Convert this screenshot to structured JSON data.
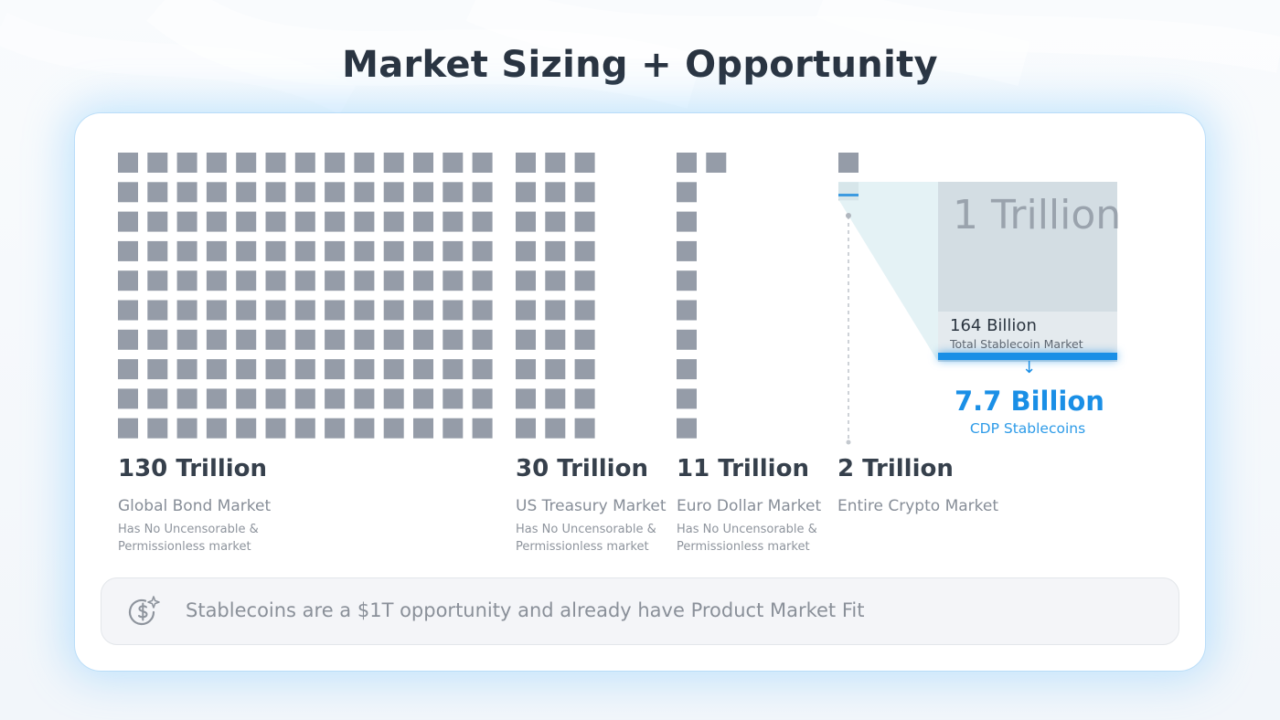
{
  "page": {
    "title": "Market Sizing + Opportunity"
  },
  "colors": {
    "cell": "#959ca8",
    "accent": "#1a8fe6",
    "glow": "#6ec3ff",
    "zoom_fill": "#d3dde3",
    "zoom_band": "#e4eaee",
    "title": "#2a3441"
  },
  "markets": [
    {
      "value": "130 Trillion",
      "name": "Global Bond Market",
      "note": "Has No Uncensorable & Permissionless market",
      "trillions": 130,
      "unit_trillions": 1
    },
    {
      "value": "30 Trillion",
      "name": "US Treasury Market",
      "note": "Has No Uncensorable & Permissionless market",
      "trillions": 30,
      "unit_trillions": 1
    },
    {
      "value": "11 Trillion",
      "name": "Euro Dollar Market",
      "note": "Has No Uncensorable & Permissionless market",
      "trillions": 11,
      "unit_trillions": 1
    },
    {
      "value": "2 Trillion",
      "name": "Entire Crypto Market",
      "note": "",
      "trillions": 2,
      "unit_trillions": 1
    }
  ],
  "zoom": {
    "unit_label": "1 Trillion",
    "stablecoin_value": "164 Billion",
    "stablecoin_label": "Total Stablecoin Market",
    "stablecoin_fraction": 0.164,
    "cdp_value": "7.7 Billion",
    "cdp_label": "CDP Stablecoins",
    "arrow_glyph": "↓"
  },
  "callout": {
    "icon": "dollar-sparkle-icon",
    "text": "Stablecoins are a $1T opportunity and already have Product Market Fit"
  }
}
